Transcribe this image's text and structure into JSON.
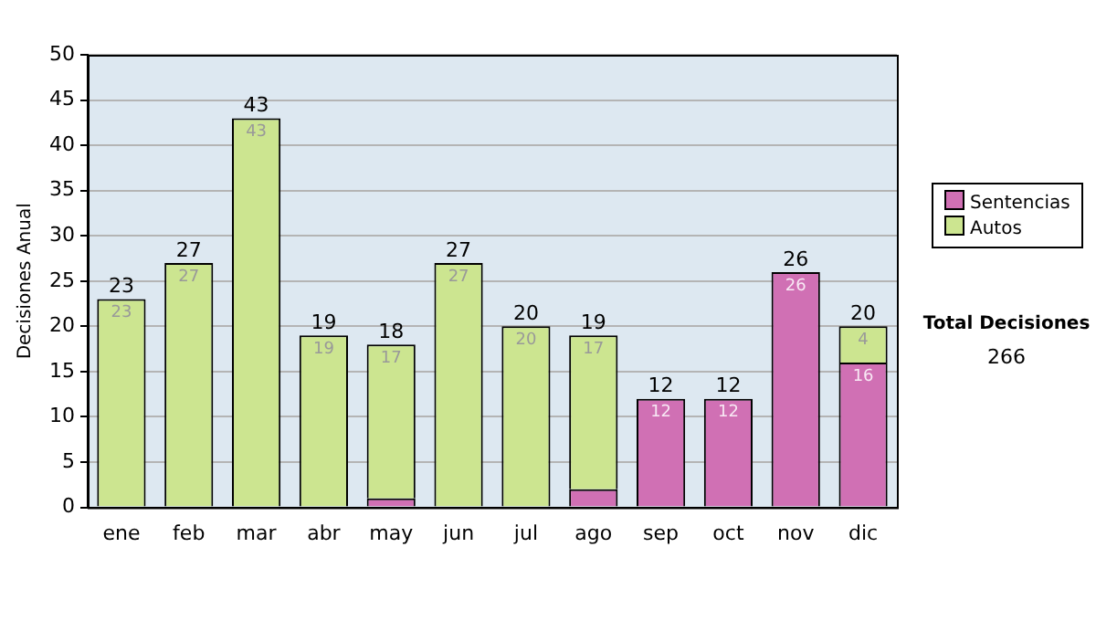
{
  "chart_data": {
    "type": "bar",
    "stacked": true,
    "ylabel": "Decisiones Anual",
    "categories": [
      "ene",
      "feb",
      "mar",
      "abr",
      "may",
      "jun",
      "jul",
      "ago",
      "sep",
      "oct",
      "nov",
      "dic"
    ],
    "series": [
      {
        "name": "Sentencias",
        "color": "#d070b4",
        "values": [
          0,
          0,
          0,
          0,
          1,
          0,
          0,
          2,
          12,
          12,
          26,
          16
        ],
        "value_labels": [
          null,
          null,
          null,
          null,
          null,
          null,
          null,
          null,
          "12",
          "12",
          "26",
          "16"
        ]
      },
      {
        "name": "Autos",
        "color": "#cce590",
        "values": [
          23,
          27,
          43,
          19,
          17,
          27,
          20,
          17,
          0,
          0,
          0,
          4
        ],
        "value_labels": [
          "23",
          "27",
          "43",
          "19",
          "17",
          "27",
          "20",
          "17",
          null,
          null,
          null,
          "4"
        ]
      }
    ],
    "totals": [
      "23",
      "27",
      "43",
      "19",
      "18",
      "27",
      "20",
      "19",
      "12",
      "12",
      "26",
      "20"
    ],
    "ylim": [
      0,
      50
    ],
    "yticks": [
      0,
      5,
      10,
      15,
      20,
      25,
      30,
      35,
      40,
      45,
      50
    ],
    "grid": "y",
    "legend": "right",
    "annotations": [
      "Total Decisiones",
      "266"
    ]
  }
}
